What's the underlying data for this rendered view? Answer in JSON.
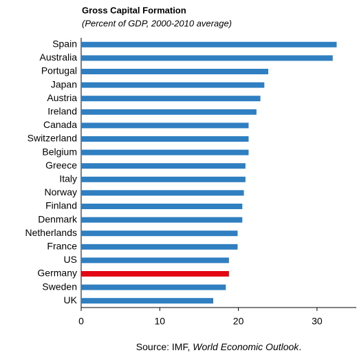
{
  "chart_data": {
    "type": "barh",
    "title": "Gross Capital Formation",
    "subtitle": "(Percent of GDP, 2000-2010 average)",
    "categories": [
      "Spain",
      "Australia",
      "Portugal",
      "Japan",
      "Austria",
      "Ireland",
      "Canada",
      "Switzerland",
      "Belgium",
      "Greece",
      "Italy",
      "Norway",
      "Finland",
      "Denmark",
      "Netherlands",
      "France",
      "US",
      "Germany",
      "Sweden",
      "UK"
    ],
    "values": [
      32.5,
      32.0,
      23.8,
      23.3,
      22.8,
      22.3,
      21.3,
      21.3,
      21.3,
      20.9,
      20.9,
      20.7,
      20.5,
      20.5,
      19.9,
      19.9,
      18.8,
      18.8,
      18.4,
      16.8
    ],
    "colors": [
      "#2f7fc1",
      "#2f7fc1",
      "#2f7fc1",
      "#2f7fc1",
      "#2f7fc1",
      "#2f7fc1",
      "#2f7fc1",
      "#2f7fc1",
      "#2f7fc1",
      "#2f7fc1",
      "#2f7fc1",
      "#2f7fc1",
      "#2f7fc1",
      "#2f7fc1",
      "#2f7fc1",
      "#2f7fc1",
      "#2f7fc1",
      "#e30613",
      "#2f7fc1",
      "#2f7fc1"
    ],
    "xlim": [
      0,
      35
    ],
    "xticks": [
      0,
      10,
      20,
      30
    ],
    "source": {
      "prefix": "Source: IMF, ",
      "publication": "World Economic Outlook",
      "suffix": "."
    }
  }
}
